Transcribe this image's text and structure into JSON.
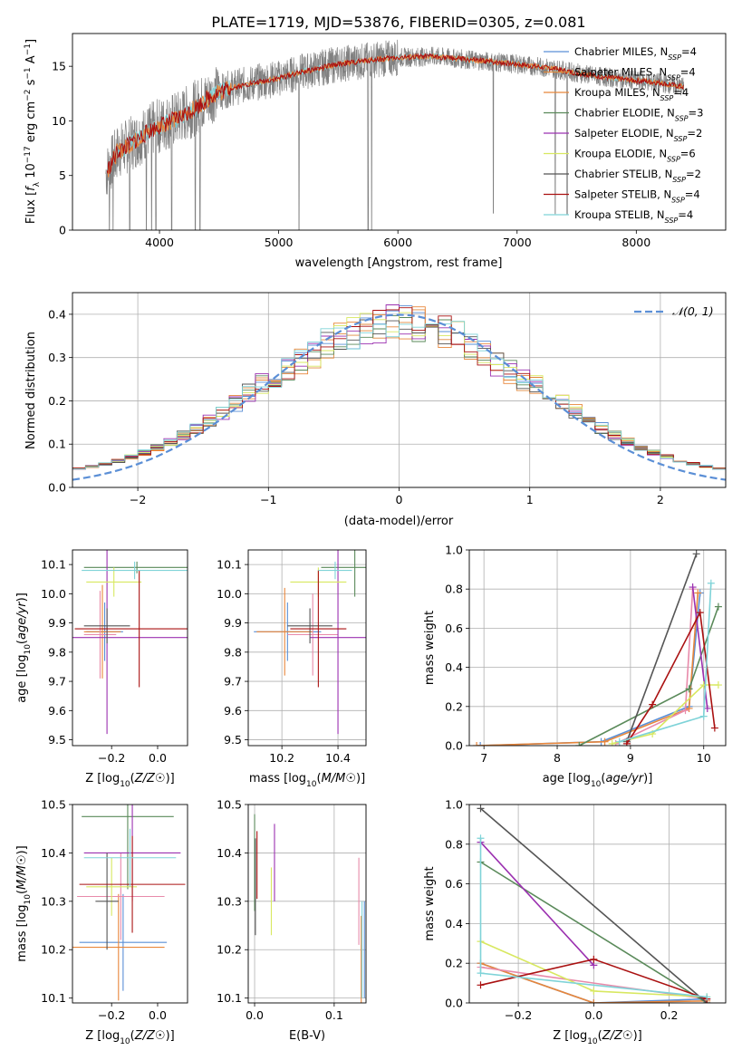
{
  "figure": {
    "title": "PLATE=1719, MJD=53876, FIBERID=0305, z=0.081"
  },
  "chart_data": [
    {
      "id": "spectrum",
      "type": "line",
      "xlabel": "wavelength [Angstrom, rest frame]",
      "ylabel": "Flux [f_λ 10^-17 erg cm^-2 s^-1 A^-1]",
      "xlim": [
        3270,
        8750
      ],
      "ylim": [
        0,
        18
      ],
      "xticks": [
        4000,
        5000,
        6000,
        7000,
        8000
      ],
      "yticks": [
        0,
        5,
        10,
        15
      ],
      "grid": false,
      "legend_position": "right",
      "data_color": "#808080",
      "series": [
        {
          "label": "Chabrier MILES, N_SSP=4",
          "color": "#5a8fd6"
        },
        {
          "label": "Salpeter MILES, N_SSP=4",
          "color": "#e0883c"
        },
        {
          "label": "Kroupa MILES, N_SSP=4",
          "color": "#e8863a"
        },
        {
          "label": "Chabrier ELODIE, N_SSP=3",
          "color": "#5a8a5a"
        },
        {
          "label": "Salpeter ELODIE, N_SSP=2",
          "color": "#9b30b0"
        },
        {
          "label": "Kroupa ELODIE, N_SSP=6",
          "color": "#d8e860"
        },
        {
          "label": "Chabrier STELIB, N_SSP=2",
          "color": "#555555"
        },
        {
          "label": "Salpeter STELIB, N_SSP=4",
          "color": "#aa1111"
        },
        {
          "label": "Kroupa STELIB, N_SSP=4",
          "color": "#7fd3d8"
        }
      ],
      "continuum": [
        [
          3550,
          5.2
        ],
        [
          3650,
          7.2
        ],
        [
          3750,
          7.8
        ],
        [
          3850,
          8.6
        ],
        [
          3950,
          9.3
        ],
        [
          4050,
          9.8
        ],
        [
          4150,
          10.2
        ],
        [
          4300,
          11.2
        ],
        [
          4450,
          12.4
        ],
        [
          4600,
          13.0
        ],
        [
          4800,
          13.5
        ],
        [
          5000,
          13.9
        ],
        [
          5200,
          14.5
        ],
        [
          5500,
          15.2
        ],
        [
          5800,
          15.6
        ],
        [
          6000,
          15.8
        ],
        [
          6300,
          15.9
        ],
        [
          6600,
          15.6
        ],
        [
          7000,
          15.2
        ],
        [
          7300,
          14.8
        ],
        [
          7600,
          14.2
        ],
        [
          7900,
          13.8
        ],
        [
          8200,
          13.5
        ],
        [
          8400,
          13.1
        ]
      ]
    },
    {
      "id": "residuals",
      "type": "step",
      "xlabel": "(data-model)/error",
      "ylabel": "Normed distribution",
      "xlim": [
        -2.5,
        2.5
      ],
      "ylim": [
        0,
        0.45
      ],
      "xticks": [
        -2,
        -1,
        0,
        1,
        2
      ],
      "yticks": [
        0.0,
        0.1,
        0.2,
        0.3,
        0.4
      ],
      "grid": true,
      "legend": [
        {
          "label": "𝒩(0, 1)",
          "style": "dashed",
          "color": "#5b8fd6"
        }
      ]
    },
    {
      "id": "age_vs_Z",
      "type": "errorbar",
      "xlabel": "Z [log10(Z/Z☉)]",
      "ylabel": "age  [log10(age/yr)]",
      "xlim": [
        -0.37,
        0.13
      ],
      "ylim": [
        9.48,
        10.15
      ],
      "xticks": [
        -0.2,
        0.0
      ],
      "yticks": [
        9.5,
        9.6,
        9.7,
        9.8,
        9.9,
        10.0,
        10.1
      ],
      "grid": false,
      "points": [
        {
          "x": -0.23,
          "y": 9.87,
          "xerr": 0.08,
          "yerr": 0.1,
          "color": "#5a8fd6"
        },
        {
          "x": -0.24,
          "y": 9.87,
          "xerr": 0.08,
          "yerr": 0.16,
          "color": "#e8863a"
        },
        {
          "x": -0.25,
          "y": 9.86,
          "xerr": 0.07,
          "yerr": 0.15,
          "color": "#e88aaa"
        },
        {
          "x": -0.09,
          "y": 10.09,
          "xerr": 0.23,
          "yerr": 0.02,
          "color": "#5a8a5a"
        },
        {
          "x": -0.22,
          "y": 9.85,
          "xerr": 0.47,
          "yerr": 0.33,
          "color": "#9b30b0"
        },
        {
          "x": -0.19,
          "y": 10.04,
          "xerr": 0.12,
          "yerr": 0.05,
          "color": "#d8e860"
        },
        {
          "x": -0.22,
          "y": 9.89,
          "xerr": 0.1,
          "yerr": 0.06,
          "color": "#555555"
        },
        {
          "x": -0.08,
          "y": 9.88,
          "xerr": 0.28,
          "yerr": 0.2,
          "color": "#aa1111"
        },
        {
          "x": -0.1,
          "y": 10.08,
          "xerr": 0.23,
          "yerr": 0.03,
          "color": "#7fd3d8"
        }
      ]
    },
    {
      "id": "age_vs_mass",
      "type": "errorbar",
      "xlabel": "mass [log10(M/M☉)]",
      "ylabel": "",
      "xlim": [
        10.08,
        10.5
      ],
      "ylim": [
        9.48,
        10.15
      ],
      "xticks": [
        10.2,
        10.4
      ],
      "yticks": [
        9.5,
        9.6,
        9.7,
        9.8,
        9.9,
        10.0,
        10.1
      ],
      "grid": true,
      "points": [
        {
          "x": 10.22,
          "y": 9.87,
          "xerr": 0.12,
          "yerr": 0.1,
          "color": "#5a8fd6"
        },
        {
          "x": 10.21,
          "y": 9.87,
          "xerr": 0.1,
          "yerr": 0.15,
          "color": "#e8863a"
        },
        {
          "x": 10.31,
          "y": 9.86,
          "xerr": 0.09,
          "yerr": 0.14,
          "color": "#e88aaa"
        },
        {
          "x": 10.46,
          "y": 10.09,
          "xerr": 0.12,
          "yerr": 0.1,
          "color": "#5a8a5a"
        },
        {
          "x": 10.4,
          "y": 9.85,
          "xerr": 0.1,
          "yerr": 0.33,
          "color": "#9b30b0"
        },
        {
          "x": 10.33,
          "y": 10.04,
          "xerr": 0.1,
          "yerr": 0.05,
          "color": "#d8e860"
        },
        {
          "x": 10.3,
          "y": 9.89,
          "xerr": 0.08,
          "yerr": 0.06,
          "color": "#555555"
        },
        {
          "x": 10.33,
          "y": 9.88,
          "xerr": 0.1,
          "yerr": 0.2,
          "color": "#aa1111"
        },
        {
          "x": 10.39,
          "y": 10.08,
          "xerr": 0.06,
          "yerr": 0.03,
          "color": "#7fd3d8"
        }
      ]
    },
    {
      "id": "weight_vs_age",
      "type": "line",
      "xlabel": "age  [log10(age/yr)]",
      "ylabel": "mass weight",
      "xlim": [
        6.8,
        10.3
      ],
      "ylim": [
        0,
        1
      ],
      "xticks": [
        7,
        8,
        9,
        10
      ],
      "yticks": [
        0.0,
        0.2,
        0.4,
        0.6,
        0.8,
        1.0
      ],
      "grid": true,
      "series": [
        {
          "color": "#5a8fd6",
          "points": [
            [
              6.95,
              0.0
            ],
            [
              8.6,
              0.02
            ],
            [
              9.8,
              0.2
            ],
            [
              9.95,
              0.78
            ]
          ]
        },
        {
          "color": "#e8863a",
          "points": [
            [
              6.9,
              0.0
            ],
            [
              8.65,
              0.02
            ],
            [
              9.8,
              0.19
            ],
            [
              9.92,
              0.78
            ]
          ]
        },
        {
          "color": "#e88aaa",
          "points": [
            [
              8.8,
              0.01
            ],
            [
              9.75,
              0.18
            ],
            [
              9.85,
              0.8
            ]
          ]
        },
        {
          "color": "#5a8a5a",
          "points": [
            [
              8.3,
              0.0
            ],
            [
              9.8,
              0.29
            ],
            [
              10.2,
              0.71
            ]
          ]
        },
        {
          "color": "#9b30b0",
          "points": [
            [
              9.85,
              0.81
            ],
            [
              10.05,
              0.19
            ]
          ]
        },
        {
          "color": "#d8e860",
          "points": [
            [
              8.75,
              0.01
            ],
            [
              9.3,
              0.06
            ],
            [
              10.0,
              0.31
            ],
            [
              10.2,
              0.31
            ]
          ]
        },
        {
          "color": "#555555",
          "points": [
            [
              8.95,
              0.02
            ],
            [
              9.9,
              0.98
            ]
          ]
        },
        {
          "color": "#aa1111",
          "points": [
            [
              8.95,
              0.01
            ],
            [
              9.3,
              0.21
            ],
            [
              9.95,
              0.68
            ],
            [
              10.15,
              0.09
            ]
          ]
        },
        {
          "color": "#7fd3d8",
          "points": [
            [
              8.85,
              0.02
            ],
            [
              10.0,
              0.15
            ],
            [
              10.1,
              0.83
            ]
          ]
        }
      ]
    },
    {
      "id": "mass_vs_Z",
      "type": "errorbar",
      "xlabel": "Z [log10(Z/Z☉)]",
      "ylabel": "mass [log10(M/M☉)]",
      "xlim": [
        -0.37,
        0.13
      ],
      "ylim": [
        10.09,
        10.5
      ],
      "xticks": [
        -0.2,
        0.0
      ],
      "yticks": [
        10.1,
        10.2,
        10.3,
        10.4,
        10.5
      ],
      "grid": false,
      "points": [
        {
          "x": -0.15,
          "y": 10.215,
          "xerr": 0.19,
          "yerr": 0.1,
          "color": "#5a8fd6"
        },
        {
          "x": -0.17,
          "y": 10.205,
          "xerr": 0.2,
          "yerr": 0.11,
          "color": "#e8863a"
        },
        {
          "x": -0.16,
          "y": 10.31,
          "xerr": 0.19,
          "yerr": 0.09,
          "color": "#e88aaa"
        },
        {
          "x": -0.13,
          "y": 10.475,
          "xerr": 0.2,
          "yerr": 0.15,
          "color": "#5a8a5a"
        },
        {
          "x": -0.11,
          "y": 10.4,
          "xerr": 0.21,
          "yerr": 0.1,
          "color": "#9b30b0"
        },
        {
          "x": -0.2,
          "y": 10.33,
          "xerr": 0.11,
          "yerr": 0.06,
          "color": "#d8e860"
        },
        {
          "x": -0.22,
          "y": 10.3,
          "xerr": 0.05,
          "yerr": 0.1,
          "color": "#555555"
        },
        {
          "x": -0.11,
          "y": 10.335,
          "xerr": 0.23,
          "yerr": 0.1,
          "color": "#aa1111"
        },
        {
          "x": -0.12,
          "y": 10.39,
          "xerr": 0.2,
          "yerr": 0.06,
          "color": "#7fd3d8"
        }
      ]
    },
    {
      "id": "mass_vs_ebv",
      "type": "errorbar",
      "xlabel": "E(B-V)",
      "ylabel": "",
      "xlim": [
        -0.008,
        0.14
      ],
      "ylim": [
        10.09,
        10.5
      ],
      "xticks": [
        0.0,
        0.1
      ],
      "yticks": [
        10.1,
        10.2,
        10.3,
        10.4,
        10.5
      ],
      "grid": true,
      "points": [
        {
          "x": 0.138,
          "y": 10.2,
          "xerr": 0,
          "yerr": 0.1,
          "color": "#5a8fd6"
        },
        {
          "x": 0.134,
          "y": 10.18,
          "xerr": 0,
          "yerr": 0.09,
          "color": "#e8863a"
        },
        {
          "x": 0.131,
          "y": 10.3,
          "xerr": 0,
          "yerr": 0.09,
          "color": "#e88aaa"
        },
        {
          "x": 0.0,
          "y": 10.38,
          "xerr": 0,
          "yerr": 0.1,
          "color": "#5a8a5a"
        },
        {
          "x": 0.025,
          "y": 10.38,
          "xerr": 0,
          "yerr": 0.08,
          "color": "#9b30b0"
        },
        {
          "x": 0.021,
          "y": 10.3,
          "xerr": 0,
          "yerr": 0.07,
          "color": "#d8e860"
        },
        {
          "x": 0.001,
          "y": 10.33,
          "xerr": 0,
          "yerr": 0.1,
          "color": "#555555"
        },
        {
          "x": 0.003,
          "y": 10.375,
          "xerr": 0,
          "yerr": 0.07,
          "color": "#aa1111"
        },
        {
          "x": 0.135,
          "y": 10.2,
          "xerr": 0,
          "yerr": 0.1,
          "color": "#7fd3d8"
        }
      ]
    },
    {
      "id": "weight_vs_Z",
      "type": "line",
      "xlabel": "Z [log10(Z/Z☉)]",
      "ylabel": "mass weight",
      "xlim": [
        -0.33,
        0.35
      ],
      "ylim": [
        0,
        1
      ],
      "xticks": [
        -0.2,
        0.0,
        0.2
      ],
      "yticks": [
        0.0,
        0.2,
        0.4,
        0.6,
        0.8,
        1.0
      ],
      "grid": true,
      "series": [
        {
          "color": "#5a8fd6",
          "points": [
            [
              -0.3,
              0.2
            ],
            [
              0.0,
              0.0
            ],
            [
              0.3,
              0.02
            ]
          ]
        },
        {
          "color": "#e8863a",
          "points": [
            [
              -0.3,
              0.2
            ],
            [
              0.0,
              0.0
            ],
            [
              0.3,
              0.01
            ]
          ]
        },
        {
          "color": "#e88aaa",
          "points": [
            [
              -0.3,
              0.18
            ],
            [
              0.3,
              0.02
            ]
          ]
        },
        {
          "color": "#5a8a5a",
          "points": [
            [
              -0.3,
              0.71
            ],
            [
              0.3,
              0.0
            ]
          ]
        },
        {
          "color": "#9b30b0",
          "points": [
            [
              -0.3,
              0.81
            ],
            [
              0.0,
              0.19
            ]
          ]
        },
        {
          "color": "#d8e860",
          "points": [
            [
              -0.3,
              0.31
            ],
            [
              0.0,
              0.06
            ],
            [
              0.3,
              0.03
            ]
          ]
        },
        {
          "color": "#555555",
          "points": [
            [
              -0.3,
              0.98
            ],
            [
              0.3,
              0.0
            ]
          ]
        },
        {
          "color": "#aa1111",
          "points": [
            [
              -0.3,
              0.09
            ],
            [
              0.0,
              0.22
            ],
            [
              0.3,
              0.02
            ]
          ]
        },
        {
          "color": "#7fd3d8",
          "points": [
            [
              -0.3,
              0.83
            ],
            [
              -0.3,
              0.15
            ],
            [
              0.3,
              0.03
            ]
          ]
        }
      ]
    }
  ]
}
